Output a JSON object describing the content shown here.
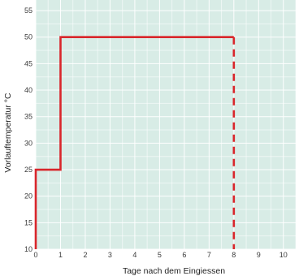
{
  "chart_data": {
    "type": "line",
    "xlabel": "Tage nach dem Eingiessen",
    "ylabel": "Vorlauftemperatur °C",
    "xlim": [
      0,
      10.5
    ],
    "ylim": [
      10,
      57
    ],
    "xticks": [
      0,
      1,
      2,
      3,
      4,
      5,
      6,
      7,
      8,
      9,
      10
    ],
    "yticks": [
      10,
      15,
      20,
      25,
      30,
      35,
      40,
      45,
      50,
      55
    ],
    "grid": true,
    "series": [
      {
        "style": "solid",
        "color": "#d9262b",
        "x": [
          0,
          0,
          1,
          1,
          8
        ],
        "y": [
          10,
          25,
          25,
          50,
          50
        ]
      },
      {
        "style": "dashed",
        "color": "#d9262b",
        "x": [
          8,
          8
        ],
        "y": [
          50,
          10
        ]
      }
    ]
  },
  "colors": {
    "plot_background": "#d8ece6",
    "gridline": "#ffffff",
    "line": "#d9262b"
  }
}
